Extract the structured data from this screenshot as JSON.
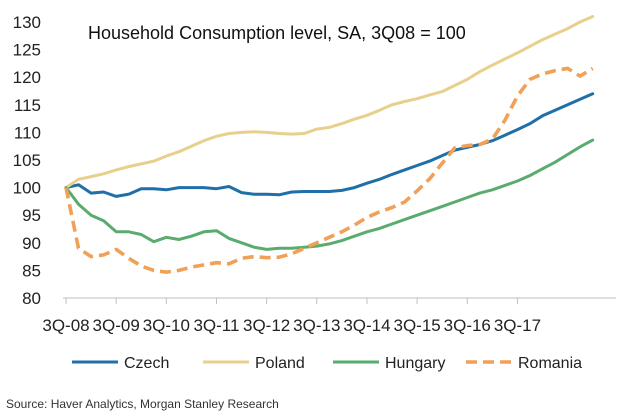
{
  "chart_data": {
    "type": "line",
    "title": "Household Consumption level, SA, 3Q08 = 100",
    "xlabel": "",
    "ylabel": "",
    "ylim": [
      80,
      130
    ],
    "yticks": [
      "80",
      "85",
      "90",
      "95",
      "100",
      "105",
      "110",
      "115",
      "120",
      "125",
      "130"
    ],
    "xticks": [
      "3Q-08",
      "3Q-09",
      "3Q-10",
      "3Q-11",
      "3Q-12",
      "3Q-13",
      "3Q-14",
      "3Q-15",
      "3Q-16",
      "3Q-17"
    ],
    "x_start": "3Q-08",
    "series": [
      {
        "name": "Czech",
        "color": "#1f6fa8",
        "style": "solid",
        "values": [
          100,
          100.5,
          99,
          99.2,
          98.4,
          98.8,
          99.8,
          99.8,
          99.6,
          100,
          100,
          100,
          99.8,
          100.2,
          99.1,
          98.8,
          98.8,
          98.7,
          99.2,
          99.3,
          99.3,
          99.3,
          99.5,
          100,
          100.8,
          101.5,
          102.4,
          103.2,
          104,
          104.8,
          105.8,
          106.8,
          107.3,
          107.8,
          108.5,
          109.5,
          110.5,
          111.6,
          113,
          114,
          115,
          116,
          117
        ]
      },
      {
        "name": "Poland",
        "color": "#e8d08c",
        "style": "solid",
        "values": [
          100,
          101.5,
          102,
          102.5,
          103.2,
          103.8,
          104.3,
          104.8,
          105.7,
          106.5,
          107.5,
          108.5,
          109.3,
          109.8,
          110,
          110.1,
          110,
          109.8,
          109.7,
          109.8,
          110.6,
          110.9,
          111.6,
          112.4,
          113.1,
          114,
          115,
          115.6,
          116.1,
          116.8,
          117.4,
          118.5,
          119.6,
          121,
          122.2,
          123.3,
          124.4,
          125.6,
          126.8,
          127.8,
          128.8,
          130,
          131
        ]
      },
      {
        "name": "Hungary",
        "color": "#5aab6e",
        "style": "solid",
        "values": [
          100,
          97,
          95,
          94,
          92,
          92,
          91.5,
          90.2,
          91,
          90.6,
          91.2,
          92,
          92.2,
          90.8,
          90,
          89.2,
          88.8,
          89,
          89,
          89.2,
          89.4,
          89.8,
          90.4,
          91.2,
          92,
          92.6,
          93.4,
          94.2,
          95,
          95.8,
          96.6,
          97.4,
          98.2,
          99,
          99.6,
          100.4,
          101.2,
          102.2,
          103.4,
          104.6,
          106,
          107.4,
          108.6
        ]
      },
      {
        "name": "Romania",
        "color": "#f0a057",
        "style": "dashed",
        "values": [
          100,
          89,
          87.5,
          87.8,
          88.8,
          87.2,
          85.8,
          85,
          84.7,
          85,
          85.6,
          86,
          86.4,
          86.2,
          87.2,
          87.5,
          87.3,
          87.4,
          88,
          89,
          90,
          91,
          92,
          93.2,
          94.6,
          95.6,
          96.4,
          97.4,
          99.4,
          101.6,
          104.4,
          107.2,
          107.6,
          107.8,
          108.8,
          112.2,
          116.6,
          119.6,
          120.6,
          121.2,
          121.6,
          120.2,
          121.6
        ]
      }
    ],
    "source": "Source: Haver Analytics, Morgan Stanley Research"
  }
}
